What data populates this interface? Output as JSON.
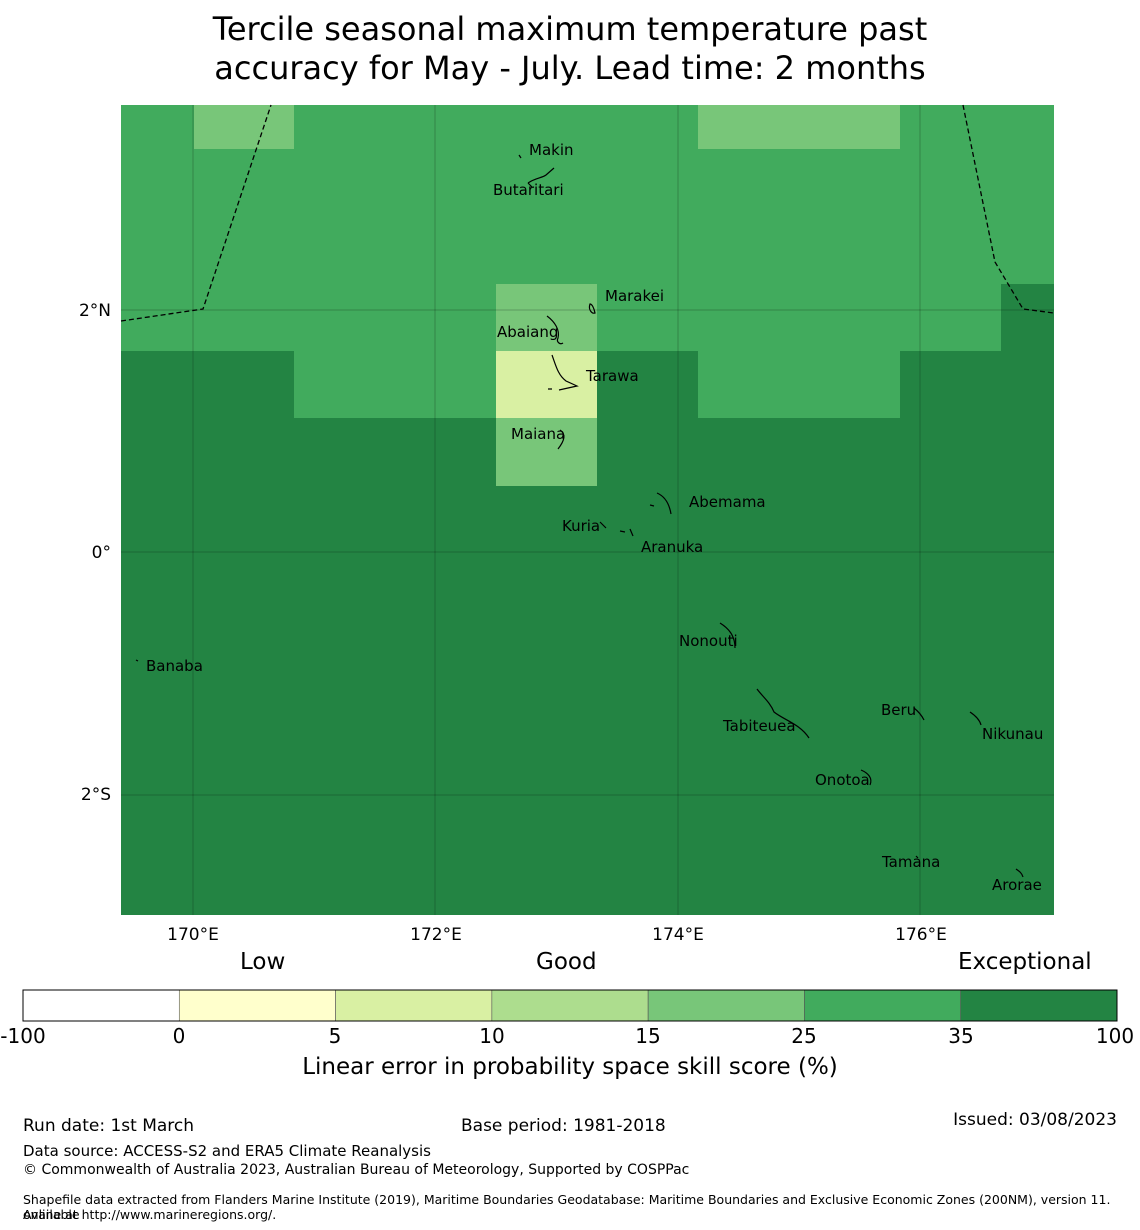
{
  "title": {
    "line1": "Tercile seasonal maximum temperature past",
    "line2": "accuracy for May - July. Lead time: 2 months"
  },
  "axes": {
    "lon_ticks": [
      "170°E",
      "172°E",
      "174°E",
      "176°E"
    ],
    "lat_ticks": [
      "2°N",
      "0°",
      "2°S"
    ]
  },
  "places": [
    {
      "name": "Makin"
    },
    {
      "name": "Butaritari"
    },
    {
      "name": "Marakei"
    },
    {
      "name": "Abaiang"
    },
    {
      "name": "Tarawa"
    },
    {
      "name": "Maiana"
    },
    {
      "name": "Abemama"
    },
    {
      "name": "Kuria"
    },
    {
      "name": "Aranuka"
    },
    {
      "name": "Nonouti"
    },
    {
      "name": "Banaba"
    },
    {
      "name": "Beru"
    },
    {
      "name": "Tabiteuea"
    },
    {
      "name": "Nikunau"
    },
    {
      "name": "Onotoa"
    },
    {
      "name": "Tamana"
    },
    {
      "name": "Arorae"
    }
  ],
  "colorbar": {
    "category_low": "Low",
    "category_good": "Good",
    "category_exceptional": "Exceptional",
    "ticks": [
      "-100",
      "0",
      "5",
      "10",
      "15",
      "25",
      "35",
      "100"
    ],
    "colors": [
      "#ffffff",
      "#ffffcc",
      "#d9f0a3",
      "#addd8e",
      "#78c679",
      "#41ab5d",
      "#238443"
    ],
    "label": "Linear error in probability space skill score (%)"
  },
  "footer": {
    "run_date": "Run date: 1st March",
    "base_period": "Base period: 1981-2018",
    "issued": "Issued: 03/08/2023",
    "data_source": "Data source: ACCESS-S2 and ERA5 Climate Reanalysis",
    "copyright": "© Commonwealth of Australia 2023, Australian Bureau of Meteorology, Supported by COSPPac",
    "shapefile_line1": "Shapefile data extracted from Flanders Marine Institute (2019), Maritime Boundaries Geodatabase: Maritime Boundaries and Exclusive Economic Zones (200NM), version 11. Available",
    "shapefile_line2": "online at http://www.marineregions.org/."
  }
}
